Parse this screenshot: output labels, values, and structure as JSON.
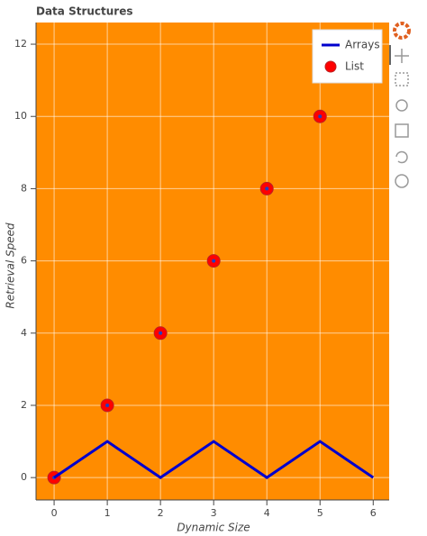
{
  "chart_data": {
    "type": "line",
    "title": "Data Structures",
    "x_label": "Dynamic Size",
    "y_label": "Retrieval Speed",
    "series": [
      {
        "name": "Arrays",
        "type": "line",
        "color": "#0000cd",
        "x": [
          0,
          1,
          2,
          3,
          4,
          5,
          6
        ],
        "values": [
          0,
          1,
          0,
          1,
          0,
          1,
          0
        ]
      },
      {
        "name": "List",
        "type": "scatter",
        "color": "#ff0000",
        "x": [
          0,
          1,
          2,
          3,
          4,
          5
        ],
        "values": [
          0,
          2,
          4,
          6,
          8,
          10
        ]
      }
    ],
    "xlim": [
      -0.34,
      6.3
    ],
    "ylim": [
      -0.62,
      12.6
    ],
    "xticks": [
      0,
      1,
      2,
      3,
      4,
      5,
      6
    ],
    "yticks": [
      0,
      2,
      4,
      6,
      8,
      10,
      12
    ],
    "grid": true,
    "background": "#ff8c00",
    "legend": "top-right"
  }
}
